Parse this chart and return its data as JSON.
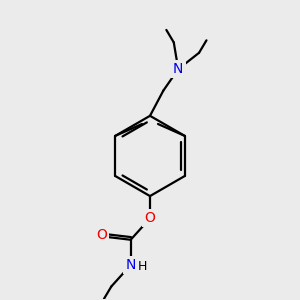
{
  "background_color": "#ebebeb",
  "bond_color": "#000000",
  "atom_colors": {
    "N": "#0000ee",
    "O": "#ee0000"
  },
  "figsize": [
    3.0,
    3.0
  ],
  "dpi": 100
}
